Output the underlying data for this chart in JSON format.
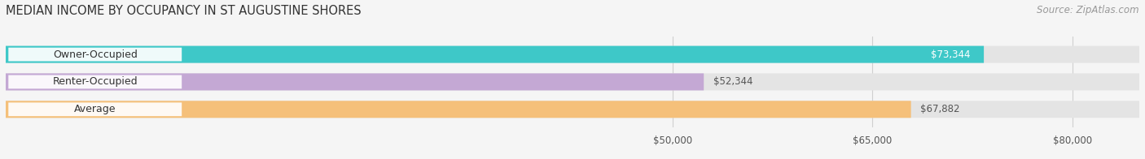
{
  "title": "MEDIAN INCOME BY OCCUPANCY IN ST AUGUSTINE SHORES",
  "source": "Source: ZipAtlas.com",
  "categories": [
    "Owner-Occupied",
    "Renter-Occupied",
    "Average"
  ],
  "values": [
    73344,
    52344,
    67882
  ],
  "bar_colors": [
    "#3ec8c8",
    "#c4a8d4",
    "#f5c07a"
  ],
  "value_label_inside": [
    true,
    false,
    false
  ],
  "xmin": 0,
  "xmax": 85000,
  "xticks": [
    50000,
    65000,
    80000
  ],
  "xtick_labels": [
    "$50,000",
    "$65,000",
    "$80,000"
  ],
  "title_fontsize": 10.5,
  "source_fontsize": 8.5,
  "label_fontsize": 9,
  "value_fontsize": 8.5,
  "tick_fontsize": 8.5,
  "bar_height": 0.62,
  "background_color": "#f5f5f5",
  "bar_background_color": "#e4e4e4",
  "label_bg_color": "#ffffff",
  "grid_color": "#d0d0d0"
}
